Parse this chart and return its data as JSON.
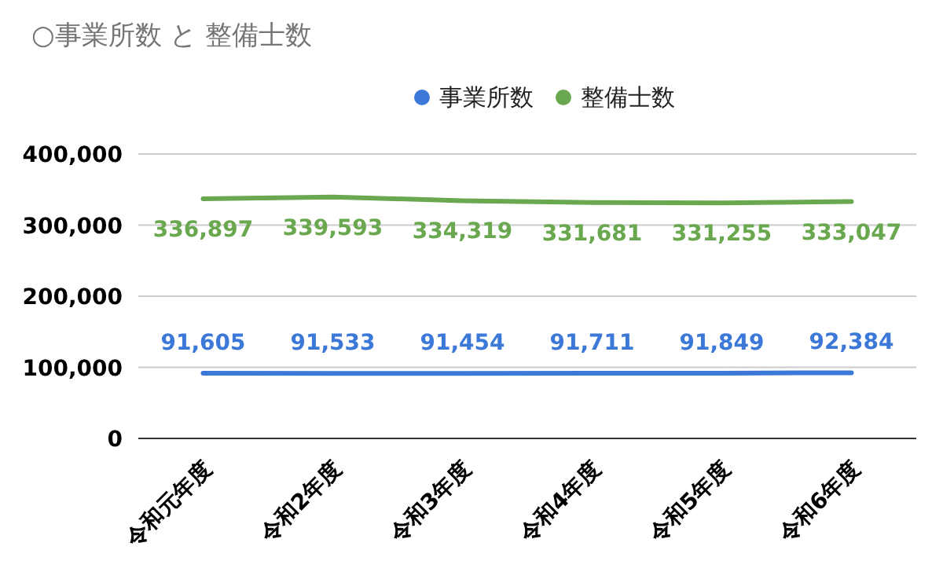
{
  "chart_data": {
    "type": "line",
    "title": "○事業所数 と 整備士数",
    "categories": [
      "令和元年度",
      "令和2年度",
      "令和3年度",
      "令和4年度",
      "令和5年度",
      "令和6年度"
    ],
    "series": [
      {
        "name": "事業所数",
        "color": "#3c78d8",
        "values": [
          91605,
          91533,
          91454,
          91711,
          91849,
          92384
        ],
        "value_labels": [
          "91,605",
          "91,533",
          "91,454",
          "91,711",
          "91,849",
          "92,384"
        ]
      },
      {
        "name": "整備士数",
        "color": "#6aa84f",
        "values": [
          336897,
          339593,
          334319,
          331681,
          331255,
          333047
        ],
        "value_labels": [
          "336,897",
          "339,593",
          "334,319",
          "331,681",
          "331,255",
          "333,047"
        ]
      }
    ],
    "ylim": [
      0,
      400000
    ],
    "yticks": [
      {
        "value": 0,
        "label": "0"
      },
      {
        "value": 100000,
        "label": "100,000"
      },
      {
        "value": 200000,
        "label": "200,000"
      },
      {
        "value": 300000,
        "label": "300,000"
      },
      {
        "value": 400000,
        "label": "400,000"
      }
    ],
    "grid": "y",
    "legend": "top"
  }
}
